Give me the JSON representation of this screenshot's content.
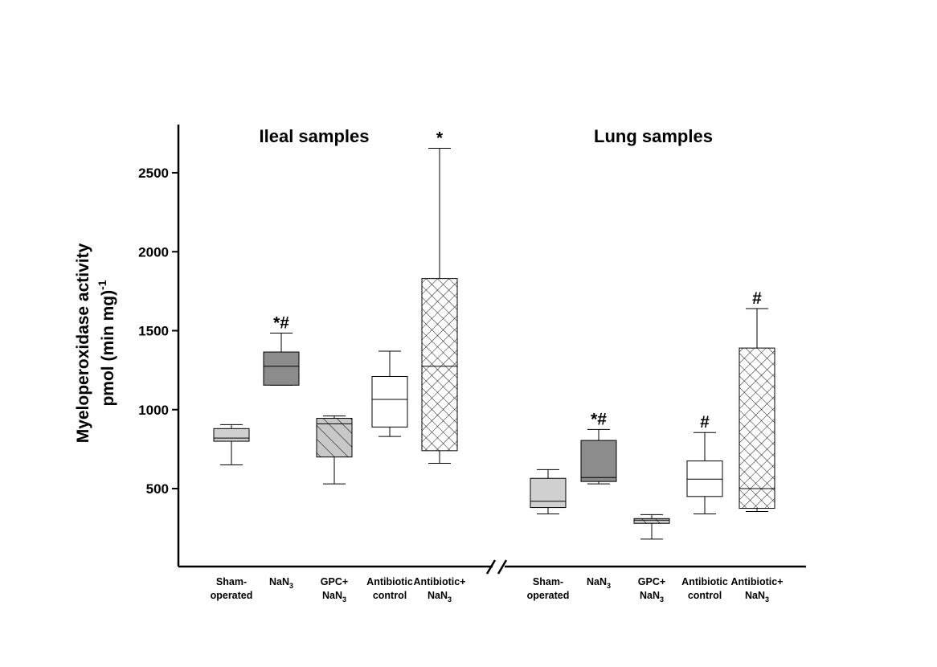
{
  "chart_data": {
    "type": "box",
    "ylabel_line1": "Myeloperoxidase activity",
    "ylabel_line2": "pmol (min mg)",
    "ylabel_sup": "-1",
    "ylim": [
      0,
      2800
    ],
    "yticks": [
      500,
      1000,
      1500,
      2000,
      2500
    ],
    "axis_break": true,
    "colors": {
      "sham": "#d0d0d0",
      "nan3": "#8c8c8c",
      "gpc": "#c8c8c8",
      "antibiotic_control": "#ffffff",
      "antibiotic_nan3": "#ffffff"
    },
    "patterns": {
      "gpc": "diagonal-hatch",
      "antibiotic_nan3": "crosshatch"
    },
    "groups": [
      {
        "title": "Ileal samples",
        "boxes": [
          {
            "key": "sham",
            "label1": "Sham-",
            "label2": "operated",
            "label2_sub": "",
            "min": 650,
            "q1": 800,
            "median": 820,
            "q3": 880,
            "max": 905,
            "sig": ""
          },
          {
            "key": "nan3",
            "label1": "NaN",
            "label1_sub": "3",
            "label2": "",
            "label2_sub": "",
            "min": 1155,
            "q1": 1155,
            "median": 1275,
            "q3": 1365,
            "max": 1485,
            "sig": "*#"
          },
          {
            "key": "gpc",
            "label1": "GPC+",
            "label2": "NaN",
            "label2_sub": "3",
            "min": 530,
            "q1": 700,
            "median": 910,
            "q3": 945,
            "max": 960,
            "sig": ""
          },
          {
            "key": "antibiotic_control",
            "label1": "Antibiotic",
            "label2": "control",
            "label2_sub": "",
            "min": 830,
            "q1": 890,
            "median": 1065,
            "q3": 1210,
            "max": 1370,
            "sig": ""
          },
          {
            "key": "antibiotic_nan3",
            "label1": "Antibiotic+",
            "label2": "NaN",
            "label2_sub": "3",
            "min": 660,
            "q1": 740,
            "median": 1275,
            "q3": 1830,
            "max": 2655,
            "sig": "*"
          }
        ]
      },
      {
        "title": "Lung samples",
        "boxes": [
          {
            "key": "sham",
            "label1": "Sham-",
            "label2": "operated",
            "label2_sub": "",
            "min": 340,
            "q1": 380,
            "median": 420,
            "q3": 565,
            "max": 620,
            "sig": ""
          },
          {
            "key": "nan3",
            "label1": "NaN",
            "label1_sub": "3",
            "label2": "",
            "label2_sub": "",
            "min": 530,
            "q1": 545,
            "median": 570,
            "q3": 805,
            "max": 875,
            "sig": "*#"
          },
          {
            "key": "gpc",
            "label1": "GPC+",
            "label2": "NaN",
            "label2_sub": "3",
            "min": 180,
            "q1": 280,
            "median": 300,
            "q3": 310,
            "max": 335,
            "sig": ""
          },
          {
            "key": "antibiotic_control",
            "label1": "Antibiotic",
            "label2": "control",
            "label2_sub": "",
            "min": 340,
            "q1": 450,
            "median": 560,
            "q3": 675,
            "max": 855,
            "sig": "#"
          },
          {
            "key": "antibiotic_nan3",
            "label1": "Antibiotic+",
            "label2": "NaN",
            "label2_sub": "3",
            "min": 355,
            "q1": 375,
            "median": 500,
            "q3": 1390,
            "max": 1640,
            "sig": "#"
          }
        ]
      }
    ]
  }
}
